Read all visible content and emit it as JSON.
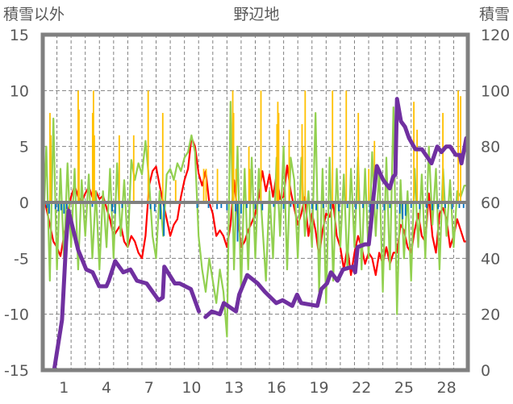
{
  "chart_data": {
    "type": "line",
    "title": "野辺地",
    "ylabel_left": "積雪以外",
    "ylabel_right": "積雪",
    "xlim": [
      0,
      30
    ],
    "ylim_left": [
      -15,
      15
    ],
    "ylim_right": [
      0,
      120
    ],
    "yticks_left": [
      "15",
      "10",
      "5",
      "0",
      "-5",
      "-10",
      "-15"
    ],
    "yticks_left_values": [
      15,
      10,
      5,
      0,
      -5,
      -10,
      -15
    ],
    "yticks_right": [
      "120",
      "100",
      "80",
      "60",
      "40",
      "20",
      "0"
    ],
    "yticks_right_values": [
      120,
      100,
      80,
      60,
      40,
      20,
      0
    ],
    "xtick_labels": [
      "1",
      "4",
      "7",
      "10",
      "13",
      "16",
      "19",
      "22",
      "25",
      "28"
    ],
    "xtick_days": [
      1,
      4,
      7,
      10,
      13,
      16,
      19,
      22,
      25,
      28
    ],
    "grid": true,
    "colors": {
      "red": "#ff0000",
      "green": "#92d050",
      "orange": "#ffc000",
      "blue": "#0070c0",
      "purple": "#7030a0",
      "axis": "#808080",
      "text": "#595959"
    },
    "series": [
      {
        "name": "red-line",
        "axis": "left",
        "type": "line",
        "color": "#ff0000",
        "step": 0.25,
        "values": [
          0.3,
          -0.5,
          -2,
          -3.5,
          -4,
          -4.8,
          -3,
          -1,
          0.5,
          1.5,
          0.5,
          0,
          0.8,
          1.4,
          0.5,
          1,
          0.3,
          0.6,
          -0.5,
          -1.5,
          -3,
          -2.5,
          -2,
          -3.5,
          -4,
          -3,
          -3.5,
          -4.5,
          -5,
          -3,
          1.5,
          2.8,
          3.2,
          1.5,
          0,
          -1.5,
          -3,
          -2,
          -1.5,
          0.5,
          2,
          3,
          5.8,
          5,
          2.6,
          1.5,
          2.8,
          0,
          -1,
          -3,
          -2.5,
          -3,
          -4,
          -2,
          2,
          -1,
          -4,
          -3.5,
          -2.5,
          -1.8,
          -1,
          0.5,
          2.8,
          1,
          2.5,
          0.5,
          2.5,
          0.3,
          0.5,
          3.3,
          1,
          -0.5,
          -2,
          -1,
          0.5,
          -3,
          -1,
          -2.5,
          -4.8,
          -2.5,
          -1,
          -1.3,
          0,
          -3,
          -4,
          -6,
          -4,
          -6.5,
          -4.5,
          -3,
          -4,
          -5.5,
          -4.5,
          -5,
          -6.5,
          -4.5,
          -5.5,
          -4,
          -5.5,
          -4.5,
          -4.5,
          -2,
          -2.5,
          -4,
          -4.5,
          -2.5,
          -1,
          -3,
          -3.5,
          0.8,
          -3,
          -4.5,
          -1,
          -0.5,
          -1.5,
          -4,
          -3,
          -1.5,
          -2.5,
          -3.5,
          -3.5
        ]
      },
      {
        "name": "green-line",
        "axis": "left",
        "type": "line",
        "color": "#92d050",
        "step": 0.25,
        "values": [
          -4,
          5,
          -7,
          7.5,
          -6,
          3,
          -5,
          3.5,
          -4,
          3,
          -6,
          2,
          -3,
          2.5,
          -5,
          1,
          -6,
          1,
          -4,
          3,
          -5,
          3.5,
          -3,
          2,
          -4,
          3.8,
          2,
          3.5,
          2.5,
          5.5,
          2,
          -3,
          -5,
          1,
          -3,
          2.5,
          3,
          2,
          3.5,
          2.8,
          4,
          4.5,
          6,
          4.5,
          -3,
          -6,
          -8,
          -5,
          -7,
          -9,
          -6,
          -8,
          -12,
          9,
          -6,
          5,
          -8,
          3,
          -6,
          4,
          -5,
          3,
          -2,
          -7,
          1,
          -5,
          4,
          -3,
          5,
          -6,
          4,
          2,
          -5,
          4,
          -3,
          1,
          -4,
          8,
          -8,
          3,
          -9,
          4,
          -7,
          3,
          -4,
          2.5,
          -6,
          3,
          -4,
          4,
          -6,
          3,
          -5,
          4.5,
          -3,
          3,
          -8,
          4,
          -6,
          8.5,
          -10,
          2,
          -5,
          1,
          -7,
          3,
          -4,
          2.5,
          -5,
          5,
          -2,
          3,
          -6,
          3,
          -3,
          2,
          -4,
          1,
          0.5,
          1.5,
          1.5
        ]
      },
      {
        "name": "orange-bars",
        "axis": "left",
        "type": "bar",
        "color": "#ffc000",
        "points": [
          [
            0.51,
            8
          ],
          [
            0.57,
            6
          ],
          [
            2.5,
            10
          ],
          [
            2.56,
            8.3
          ],
          [
            3.52,
            8
          ],
          [
            3.58,
            10
          ],
          [
            3.64,
            6
          ],
          [
            5.4,
            6
          ],
          [
            6.42,
            6
          ],
          [
            7.44,
            10
          ],
          [
            8.47,
            8
          ],
          [
            9.38,
            2
          ],
          [
            11.36,
            3
          ],
          [
            11.53,
            3
          ],
          [
            12.33,
            3
          ],
          [
            13.41,
            10
          ],
          [
            13.47,
            8
          ],
          [
            13.64,
            3
          ],
          [
            14.55,
            5
          ],
          [
            14.6,
            3
          ],
          [
            15.4,
            10
          ],
          [
            16.53,
            7
          ],
          [
            16.59,
            9
          ],
          [
            16.65,
            8
          ],
          [
            17.39,
            6.5
          ],
          [
            18.3,
            7
          ],
          [
            18.35,
            5
          ],
          [
            18.52,
            10
          ],
          [
            20.45,
            10
          ],
          [
            21.42,
            10
          ],
          [
            22.27,
            8
          ],
          [
            23.01,
            3
          ],
          [
            23.41,
            5.5
          ],
          [
            26.19,
            9
          ],
          [
            26.42,
            6.5
          ],
          [
            28.24,
            8
          ],
          [
            29.32,
            10
          ],
          [
            29.49,
            9.5
          ]
        ]
      },
      {
        "name": "blue-bars",
        "axis": "left",
        "type": "bar",
        "color": "#0070c0",
        "points": [
          [
            0.3,
            -0.5
          ],
          [
            0.45,
            -1
          ],
          [
            0.9,
            -0.6
          ],
          [
            1.1,
            -0.8
          ],
          [
            1.3,
            -0.7
          ],
          [
            1.5,
            -1
          ],
          [
            1.7,
            -0.6
          ],
          [
            3.5,
            -0.4
          ],
          [
            4.9,
            -0.8
          ],
          [
            5.1,
            -1
          ],
          [
            5.6,
            -0.5
          ],
          [
            7.6,
            -0.6
          ],
          [
            7.9,
            -0.8
          ],
          [
            8.3,
            -1.5
          ],
          [
            8.55,
            -3
          ],
          [
            10.9,
            -0.5
          ],
          [
            11.7,
            -0.5
          ],
          [
            12.3,
            -0.6
          ],
          [
            12.6,
            -0.5
          ],
          [
            13.0,
            -0.7
          ],
          [
            13.6,
            -0.8
          ],
          [
            13.75,
            -3.5
          ],
          [
            14.0,
            -1
          ],
          [
            14.4,
            -0.5
          ],
          [
            15.0,
            -0.6
          ],
          [
            15.5,
            -0.7
          ],
          [
            16.3,
            -0.4
          ],
          [
            17.0,
            -0.6
          ],
          [
            17.5,
            -0.4
          ],
          [
            18.0,
            -0.5
          ],
          [
            19.0,
            -0.6
          ],
          [
            19.3,
            -0.7
          ],
          [
            19.8,
            -0.5
          ],
          [
            20.3,
            -0.6
          ],
          [
            20.9,
            -0.8
          ],
          [
            21.5,
            -0.5
          ],
          [
            22.1,
            -0.6
          ],
          [
            22.6,
            -0.5
          ],
          [
            23.1,
            -0.9
          ],
          [
            23.6,
            -0.6
          ],
          [
            24.1,
            -0.7
          ],
          [
            24.5,
            -0.5
          ],
          [
            25.2,
            -1
          ],
          [
            25.4,
            -1.5
          ],
          [
            25.6,
            -1.2
          ],
          [
            26.0,
            -0.5
          ],
          [
            26.6,
            -0.6
          ],
          [
            27.1,
            -0.5
          ],
          [
            27.5,
            -0.7
          ],
          [
            27.9,
            -0.6
          ],
          [
            28.4,
            -0.5
          ],
          [
            28.9,
            -0.6
          ],
          [
            29.4,
            -0.5
          ],
          [
            29.7,
            -0.5
          ]
        ]
      },
      {
        "name": "snow-depth-line",
        "axis": "right",
        "type": "line",
        "color": "#7030a0",
        "points": [
          [
            0.06,
            0
          ],
          [
            0.8,
            0
          ],
          [
            1.08,
            9
          ],
          [
            1.36,
            18
          ],
          [
            1.65,
            46
          ],
          [
            1.82,
            57
          ],
          [
            2.5,
            43
          ],
          [
            3.07,
            36
          ],
          [
            3.52,
            35
          ],
          [
            3.98,
            30
          ],
          [
            4.49,
            30
          ],
          [
            4.66,
            32
          ],
          [
            5.11,
            39
          ],
          [
            5.68,
            35
          ],
          [
            6.19,
            36
          ],
          [
            6.65,
            32
          ],
          [
            7.33,
            31
          ],
          [
            8.18,
            25
          ],
          [
            8.47,
            26
          ],
          [
            8.58,
            37
          ],
          [
            9.32,
            31
          ],
          [
            9.66,
            31
          ],
          [
            10.45,
            29
          ],
          [
            11.02,
            21
          ],
          null,
          [
            11.48,
            19
          ],
          [
            11.93,
            21
          ],
          [
            12.5,
            20
          ],
          [
            12.78,
            24
          ],
          [
            13.64,
            21
          ],
          [
            13.86,
            27
          ],
          [
            14.43,
            34
          ],
          [
            15.17,
            31
          ],
          [
            15.68,
            28
          ],
          [
            16.48,
            24
          ],
          [
            16.93,
            25
          ],
          [
            17.61,
            23
          ],
          [
            17.95,
            27
          ],
          [
            18.24,
            24
          ],
          [
            19.38,
            23
          ],
          [
            19.66,
            29
          ],
          [
            20.06,
            31
          ],
          [
            20.34,
            35
          ],
          [
            20.8,
            32
          ],
          [
            21.19,
            36
          ],
          [
            21.88,
            37
          ],
          [
            22.05,
            35
          ],
          [
            22.22,
            44
          ],
          [
            22.73,
            45
          ],
          [
            23.01,
            45
          ],
          [
            23.18,
            53
          ],
          [
            23.3,
            60
          ],
          [
            23.58,
            73
          ],
          [
            24.03,
            68
          ],
          [
            24.49,
            65
          ],
          [
            24.72,
            69
          ],
          [
            24.89,
            70
          ],
          [
            25.0,
            97
          ],
          [
            25.28,
            89
          ],
          [
            25.57,
            87
          ],
          [
            25.85,
            83
          ],
          [
            26.3,
            79
          ],
          [
            26.76,
            79
          ],
          [
            27.44,
            74
          ],
          [
            27.84,
            80
          ],
          [
            28.13,
            78
          ],
          [
            28.47,
            80
          ],
          [
            28.75,
            80
          ],
          [
            29.15,
            77
          ],
          [
            29.43,
            77
          ],
          [
            29.55,
            74
          ],
          [
            29.89,
            83
          ]
        ]
      }
    ]
  }
}
